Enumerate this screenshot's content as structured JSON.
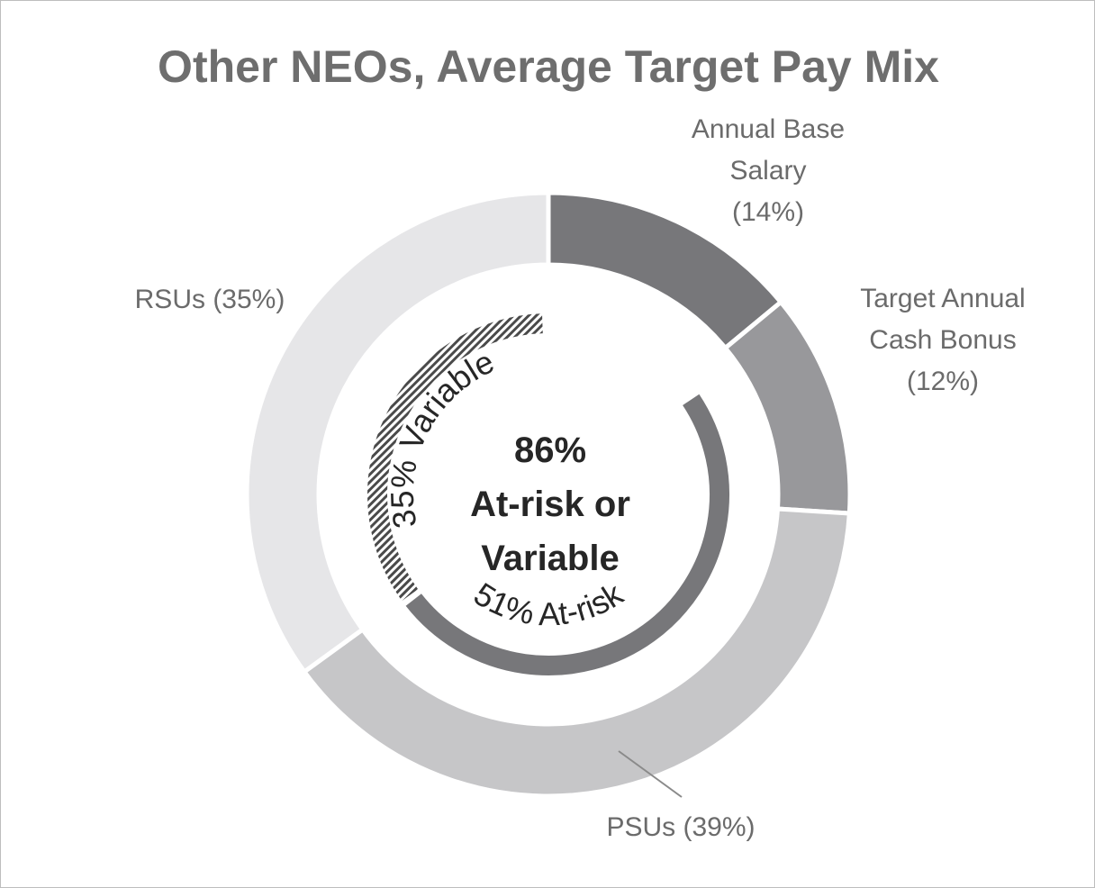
{
  "chart_data": {
    "type": "pie",
    "title": "Other NEOs, Average Target Pay Mix",
    "series": [
      {
        "values": [
          14,
          12,
          39,
          35
        ],
        "categories": [
          "Annual Base Salary",
          "Target Annual Cash Bonus",
          "PSUs",
          "RSUs"
        ],
        "labels": [
          "Annual Base\nSalary\n(14%)",
          "Target Annual\nCash Bonus\n(12%)",
          "PSUs (39%)",
          "RSUs (35%)"
        ],
        "colors": [
          "#77777a",
          "#98989b",
          "#c6c6c8",
          "#e6e6e8"
        ]
      }
    ],
    "inner_arcs": [
      {
        "label": "35% Variable",
        "value": 35,
        "pattern": "hatched",
        "color": "#4a4a4a"
      },
      {
        "label": "51% At-risk",
        "value": 51,
        "color": "#77777a"
      }
    ],
    "center_text": [
      "86%",
      "At-risk or",
      "Variable"
    ]
  }
}
